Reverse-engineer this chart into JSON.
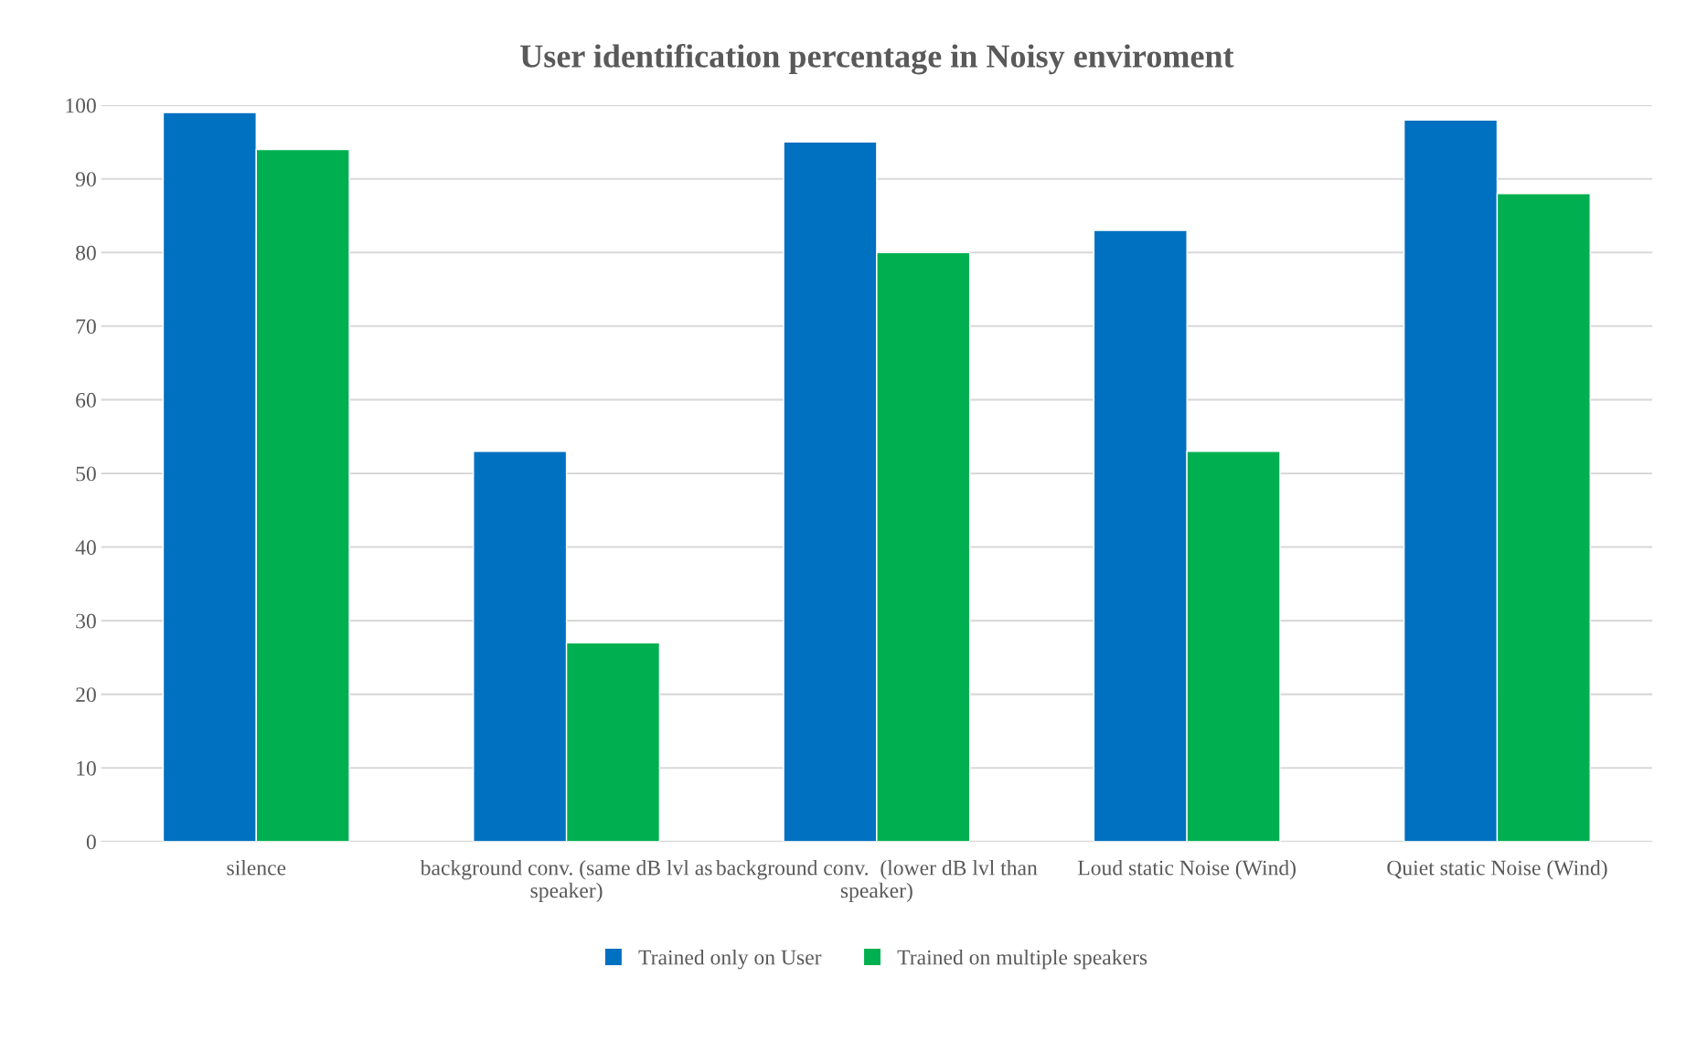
{
  "chart_data": {
    "type": "bar",
    "title": "User identification percentage in Noisy enviroment",
    "categories": [
      "silence",
      "background conv. (same dB lvl as speaker)",
      "background conv.  (lower dB lvl than speaker)",
      "Loud static Noise (Wind)",
      "Quiet static Noise (Wind)"
    ],
    "series": [
      {
        "name": "Trained only on User",
        "color": "#0070c0",
        "values": [
          99,
          53,
          95,
          83,
          98
        ]
      },
      {
        "name": "Trained on multiple speakers",
        "color": "#00b050",
        "values": [
          94,
          27,
          80,
          53,
          88
        ]
      }
    ],
    "ylim": [
      0,
      100
    ],
    "yticks": [
      0,
      10,
      20,
      30,
      40,
      50,
      60,
      70,
      80,
      90,
      100
    ],
    "grid": "y",
    "legend": "bottom"
  }
}
